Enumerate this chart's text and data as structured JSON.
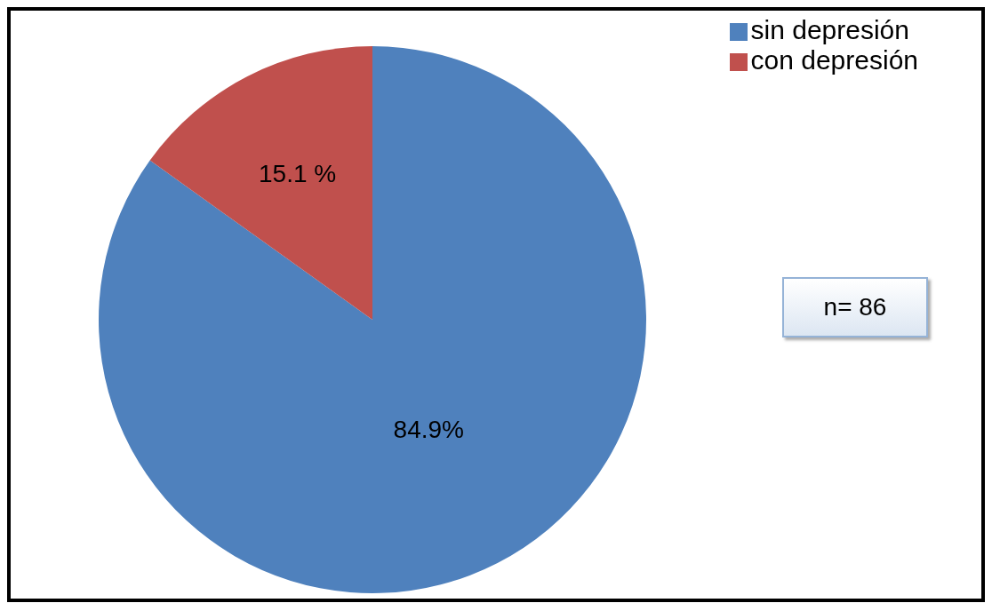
{
  "chart_data": {
    "type": "pie",
    "categories": [
      "sin depresión",
      "con depresión"
    ],
    "values": [
      84.9,
      15.1
    ],
    "value_labels": [
      "84.9%",
      "15.1 %"
    ],
    "colors": [
      "#4f81bd",
      "#c0504d"
    ],
    "legend": "top right",
    "annotations": [
      "n= 86"
    ]
  }
}
